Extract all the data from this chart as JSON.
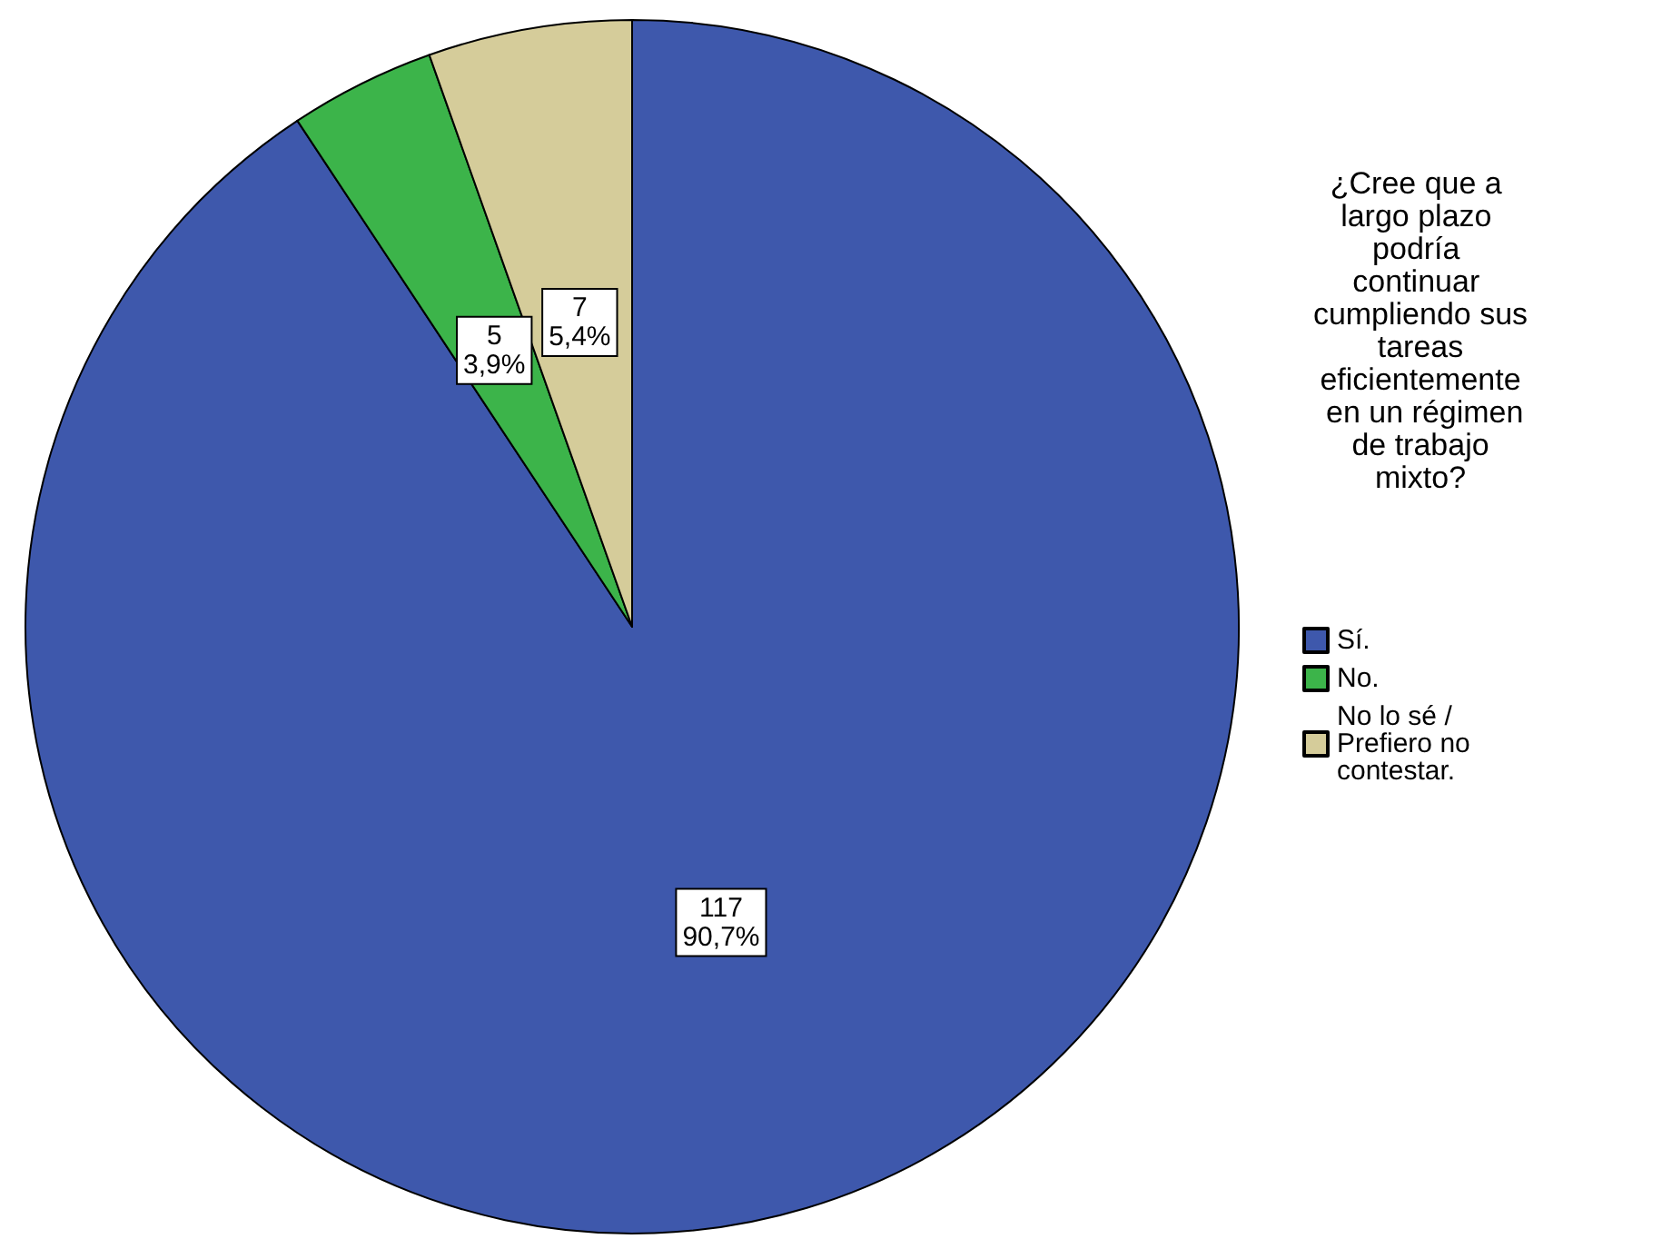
{
  "chart_data": {
    "type": "pie",
    "legend_title": "¿Cree que a largo plazo podría continuar cumpliendo sus tareas eficientemente en un régimen de trabajo mixto?",
    "categories": [
      "Sí.",
      "No.",
      "No lo sé / Prefiero no contestar."
    ],
    "values": [
      117,
      5,
      7
    ],
    "colors": [
      "#3e58ac",
      "#3cb44a",
      "#d5cc9a"
    ],
    "value_labels": [
      "117\n90,7%",
      "5\n3,9%",
      "7\n5,4%"
    ],
    "legend": "right"
  }
}
